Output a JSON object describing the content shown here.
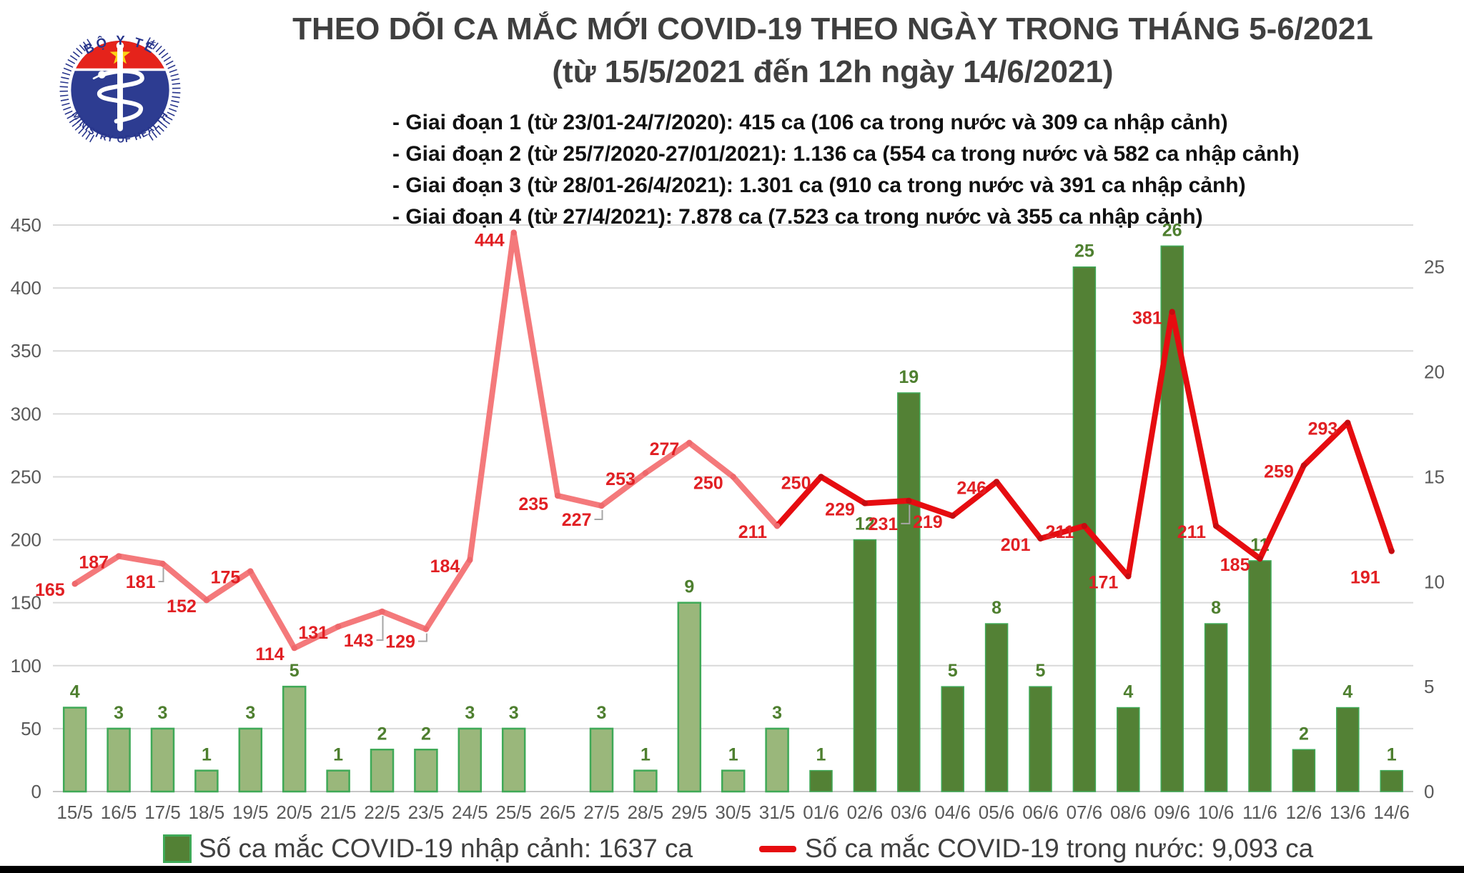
{
  "logo": {
    "top_text": "BỘ Y TẾ",
    "bottom_text": "MINISTRY OF HEALTH"
  },
  "header": {
    "title_line1": "THEO DÕI CA MẮC MỚI COVID-19 THEO NGÀY TRONG THÁNG 5-6/2021",
    "title_line2": "(từ 15/5/2021 đến 12h ngày 14/6/2021)",
    "phases": [
      "- Giai đoạn 1 (từ 23/01-24/7/2020): 415 ca (106 ca trong nước và 309 ca nhập cảnh)",
      "- Giai đoạn 2 (từ 25/7/2020-27/01/2021): 1.136 ca (554 ca trong nước và 582 ca nhập cảnh)",
      "- Giai đoạn 3 (từ 28/01-26/4/2021): 1.301 ca (910 ca trong nước và 391 ca nhập cảnh)",
      "- Giai đoạn 4 (từ 27/4/2021): 7.878 ca (7.523 ca trong nước và 355 ca nhập cảnh)"
    ]
  },
  "chart_data": {
    "type": "combo-bar-line",
    "categories": [
      "15/5",
      "16/5",
      "17/5",
      "18/5",
      "19/5",
      "20/5",
      "21/5",
      "22/5",
      "23/5",
      "24/5",
      "25/5",
      "26/5",
      "27/5",
      "28/5",
      "29/5",
      "30/5",
      "31/5",
      "01/6",
      "02/6",
      "03/6",
      "04/6",
      "05/6",
      "06/6",
      "07/6",
      "08/6",
      "09/6",
      "10/6",
      "11/6",
      "12/6",
      "13/6",
      "14/6"
    ],
    "series": [
      {
        "name": "Số ca mắc COVID-19 nhập cảnh",
        "type": "bar",
        "axis": "right",
        "values": [
          4,
          3,
          3,
          1,
          3,
          5,
          1,
          2,
          2,
          3,
          3,
          0,
          3,
          1,
          9,
          1,
          3,
          1,
          12,
          19,
          5,
          8,
          5,
          25,
          4,
          26,
          8,
          11,
          2,
          4,
          1
        ]
      },
      {
        "name": "Số ca mắc COVID-19 trong nước",
        "type": "line",
        "axis": "left",
        "values": [
          165,
          187,
          181,
          152,
          175,
          114,
          131,
          143,
          129,
          184,
          444,
          235,
          227,
          253,
          277,
          250,
          211,
          250,
          229,
          231,
          219,
          246,
          201,
          211,
          171,
          381,
          211,
          185,
          259,
          293,
          191
        ]
      }
    ],
    "left_axis": {
      "min": 0,
      "max": 450,
      "step": 50
    },
    "right_axis": {
      "min": 0,
      "max": 25,
      "step": 5,
      "ticks": [
        0,
        5,
        10,
        15,
        20,
        25
      ],
      "plot_max": 27
    },
    "grid": true,
    "legend_position": "bottom",
    "legend": [
      {
        "label": "Số ca mắc COVID-19 nhập cảnh: 1637 ca",
        "swatch": "green-square"
      },
      {
        "label": "Số ca mắc COVID-19 trong nước: 9,093 ca",
        "swatch": "red-dash"
      }
    ],
    "colors": {
      "bar_may_fill": "#9ab77b",
      "bar_may_border": "#3fa957",
      "bar_june_fill": "#538135",
      "bar_label": "#4e7f2f",
      "line_may": "#f4797b",
      "line_june": "#e60c10",
      "line_label": "#e11f23",
      "axis_text": "#595959",
      "title_text": "#3f3f3f",
      "gridline": "#d9d9d9"
    },
    "style_notes": {
      "light_bar_last_index": 16,
      "pink_line_last_index": 16
    }
  }
}
